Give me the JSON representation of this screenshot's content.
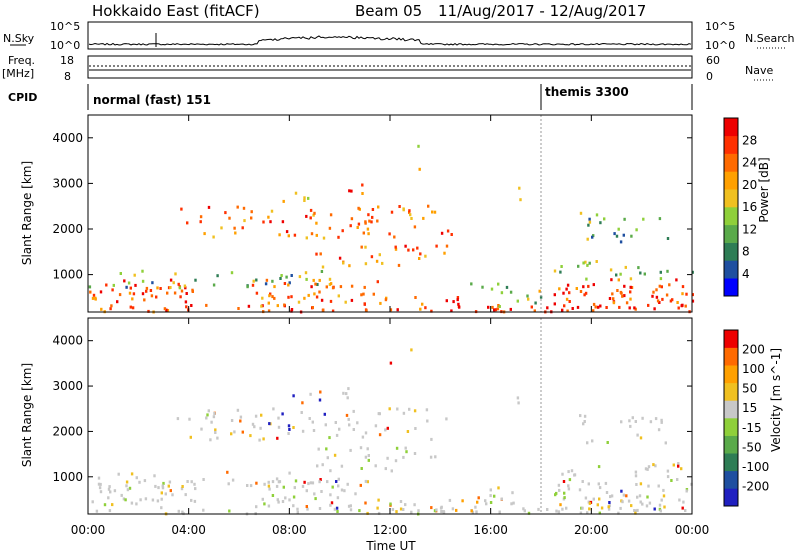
{
  "header": {
    "title": "Hokkaido East (fitACF)",
    "beam": "Beam 05",
    "date_range": "11/Aug/2017 - 12/Aug/2017"
  },
  "top_panels": {
    "nsky_label": "N.Sky",
    "nsky_ticks": [
      "10^5",
      "10^0"
    ],
    "nsearch_label": "N.Search",
    "nsearch_ticks": [
      "10^5",
      "10^0"
    ],
    "freq_label": "Freq.",
    "freq_unit": "[MHz]",
    "freq_ticks": [
      "18",
      "8"
    ],
    "nave_label": "Nave",
    "nave_ticks": [
      "60",
      "0"
    ],
    "cpid_label": "CPID",
    "cpid_modes": [
      "normal (fast) 151",
      "themis 3300"
    ]
  },
  "chart_data": [
    {
      "type": "heatmap",
      "name": "power",
      "ylabel": "Slant Range [km]",
      "xlabel": "",
      "ylim": [
        180,
        4500
      ],
      "yticks": [
        "4000",
        "3000",
        "2000",
        "1000"
      ],
      "xlim": [
        "00:00",
        "24:00"
      ],
      "xticks": [
        "00:00",
        "04:00",
        "08:00",
        "12:00",
        "16:00",
        "20:00",
        "00:00"
      ],
      "colorbar": {
        "label": "Power [dB]",
        "ticks": [
          "28",
          "24",
          "20",
          "16",
          "12",
          "8",
          "4"
        ],
        "colors": [
          "#0000ff",
          "#1f4fa0",
          "#2e7d55",
          "#5aaa4a",
          "#8fd03a",
          "#f0c020",
          "#ffa000",
          "#ff6a00",
          "#ff3000",
          "#ee0000"
        ]
      }
    },
    {
      "type": "heatmap",
      "name": "velocity",
      "ylabel": "Slant Range [km]",
      "xlabel": "Time UT",
      "ylim": [
        180,
        4500
      ],
      "yticks": [
        "4000",
        "3000",
        "2000",
        "1000"
      ],
      "xlim": [
        "00:00",
        "24:00"
      ],
      "xticks": [
        "00:00",
        "04:00",
        "08:00",
        "12:00",
        "16:00",
        "20:00",
        "00:00"
      ],
      "colorbar": {
        "label": "Velocity [m s^-1]",
        "ticks": [
          "200",
          "100",
          "50",
          "15",
          "-15",
          "-50",
          "-100",
          "-200"
        ],
        "colors": [
          "#2020c0",
          "#1f4fa0",
          "#2e7d55",
          "#5aaa4a",
          "#8fd03a",
          "#c8c8c8",
          "#f0c020",
          "#ffa000",
          "#ff6a00",
          "#ee0000"
        ]
      }
    }
  ]
}
